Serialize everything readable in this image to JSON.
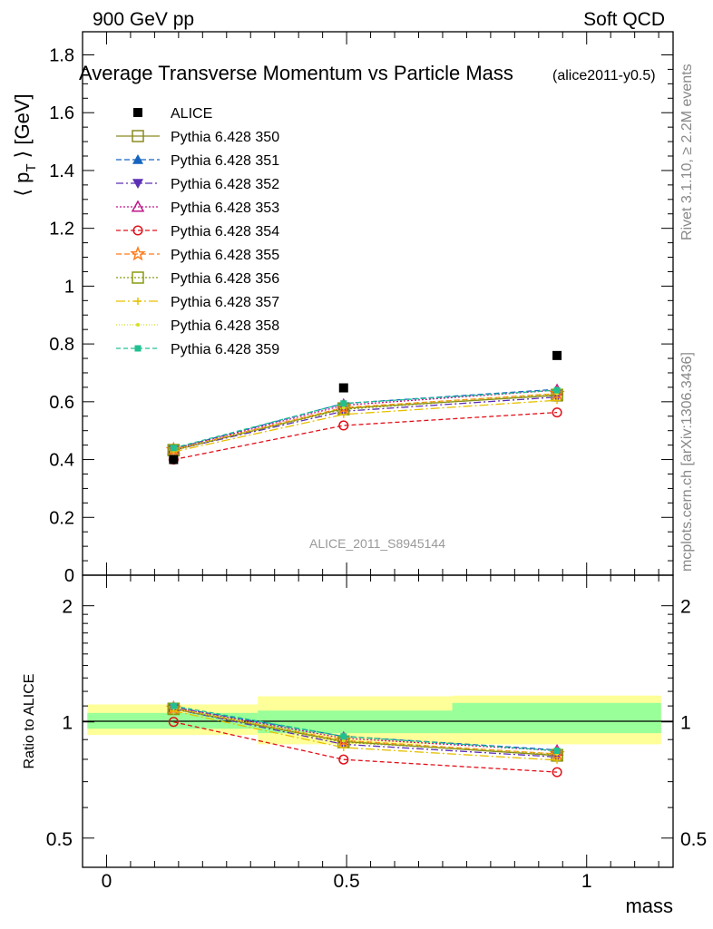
{
  "header": {
    "left": "900 GeV pp",
    "right": "Soft QCD"
  },
  "side_labels": {
    "rivet": "Rivet 3.1.10, ≥ 2.2M events",
    "mcplots": "mcplots.cern.ch [arXiv:1306.3436]"
  },
  "chart_data": [
    {
      "type": "line",
      "title": "Average Transverse Momentum vs Particle Mass",
      "subtitle": "(alice2011-y0.5)",
      "watermark": "ALICE_2011_S8945144",
      "ylabel": "⟨ p_T ⟩ [GeV]",
      "ylabel_main": "⟨ p",
      "ylabel_sub": "T",
      "ylabel_tail": " ⟩ [GeV]",
      "xlabel": "mass",
      "xlim": [
        -0.05,
        1.18
      ],
      "ylim": [
        0,
        1.88
      ],
      "yticks": [
        "0",
        "0.2",
        "0.4",
        "0.6",
        "0.8",
        "1",
        "1.2",
        "1.4",
        "1.6",
        "1.8"
      ],
      "grid": false,
      "legend_position": "top-left",
      "x": [
        0.1396,
        0.4937,
        0.9383
      ],
      "data": {
        "name": "ALICE",
        "marker": "square",
        "color": "#000000",
        "values": [
          0.4,
          0.648,
          0.76
        ]
      },
      "series": [
        {
          "name": "Pythia 6.428 350",
          "color": "#8a8a20",
          "marker": "square-open",
          "dash": "",
          "values": [
            0.432,
            0.577,
            0.622
          ]
        },
        {
          "name": "Pythia 6.428 351",
          "color": "#1565c0",
          "marker": "triangle-up",
          "dash": "6,3",
          "values": [
            0.437,
            0.594,
            0.643
          ]
        },
        {
          "name": "Pythia 6.428 352",
          "color": "#5b2fb5",
          "marker": "triangle-down",
          "dash": "8,3,2,3",
          "values": [
            0.433,
            0.567,
            0.616
          ]
        },
        {
          "name": "Pythia 6.428 353",
          "color": "#c0168a",
          "marker": "triangle-up-open",
          "dash": "2,2",
          "values": [
            0.436,
            0.588,
            0.64
          ]
        },
        {
          "name": "Pythia 6.428 354",
          "color": "#e0101a",
          "marker": "circle-open",
          "dash": "5,3",
          "values": [
            0.4,
            0.518,
            0.563
          ]
        },
        {
          "name": "Pythia 6.428 355",
          "color": "#ff7a1a",
          "marker": "star-open",
          "dash": "6,3",
          "values": [
            0.434,
            0.58,
            0.628
          ]
        },
        {
          "name": "Pythia 6.428 356",
          "color": "#8a9a10",
          "marker": "square-open",
          "dash": "2,2",
          "values": [
            0.433,
            0.574,
            0.624
          ]
        },
        {
          "name": "Pythia 6.428 357",
          "color": "#e6c000",
          "marker": "cross",
          "dash": "10,3,2,3",
          "values": [
            0.427,
            0.556,
            0.605
          ]
        },
        {
          "name": "Pythia 6.428 358",
          "color": "#d4e020",
          "marker": "dot",
          "dash": "1,2",
          "values": [
            0.434,
            0.579,
            0.628
          ]
        },
        {
          "name": "Pythia 6.428 359",
          "color": "#20c090",
          "marker": "square-small",
          "dash": "5,3",
          "values": [
            0.44,
            0.594,
            0.64
          ]
        }
      ]
    },
    {
      "type": "line",
      "ylabel": "Ratio to ALICE",
      "ylim": [
        0.42,
        2.4
      ],
      "yscale": "log",
      "yticks": [
        "0.5",
        "1",
        "2"
      ],
      "xticks": [
        "0",
        "0.5",
        "1"
      ],
      "reference": 1,
      "band_outer_color": "#ffff99",
      "band_inner_color": "#99ff99",
      "bands": [
        {
          "x0": -0.04,
          "x1": 0.315,
          "outer": [
            0.925,
            1.11
          ],
          "inner": [
            0.96,
            1.055
          ]
        },
        {
          "x0": 0.315,
          "x1": 0.72,
          "outer": [
            0.875,
            1.165
          ],
          "inner": [
            0.935,
            1.07
          ]
        },
        {
          "x0": 0.72,
          "x1": 1.155,
          "outer": [
            0.875,
            1.17
          ],
          "inner": [
            0.935,
            1.12
          ]
        }
      ],
      "ratios": [
        [
          1.08,
          0.89,
          0.818
        ],
        [
          1.092,
          0.917,
          0.846
        ],
        [
          1.082,
          0.875,
          0.811
        ],
        [
          1.09,
          0.907,
          0.842
        ],
        [
          1.0,
          0.799,
          0.741
        ],
        [
          1.085,
          0.895,
          0.826
        ],
        [
          1.082,
          0.886,
          0.821
        ],
        [
          1.068,
          0.858,
          0.796
        ],
        [
          1.085,
          0.894,
          0.826
        ],
        [
          1.1,
          0.917,
          0.842
        ]
      ]
    }
  ]
}
